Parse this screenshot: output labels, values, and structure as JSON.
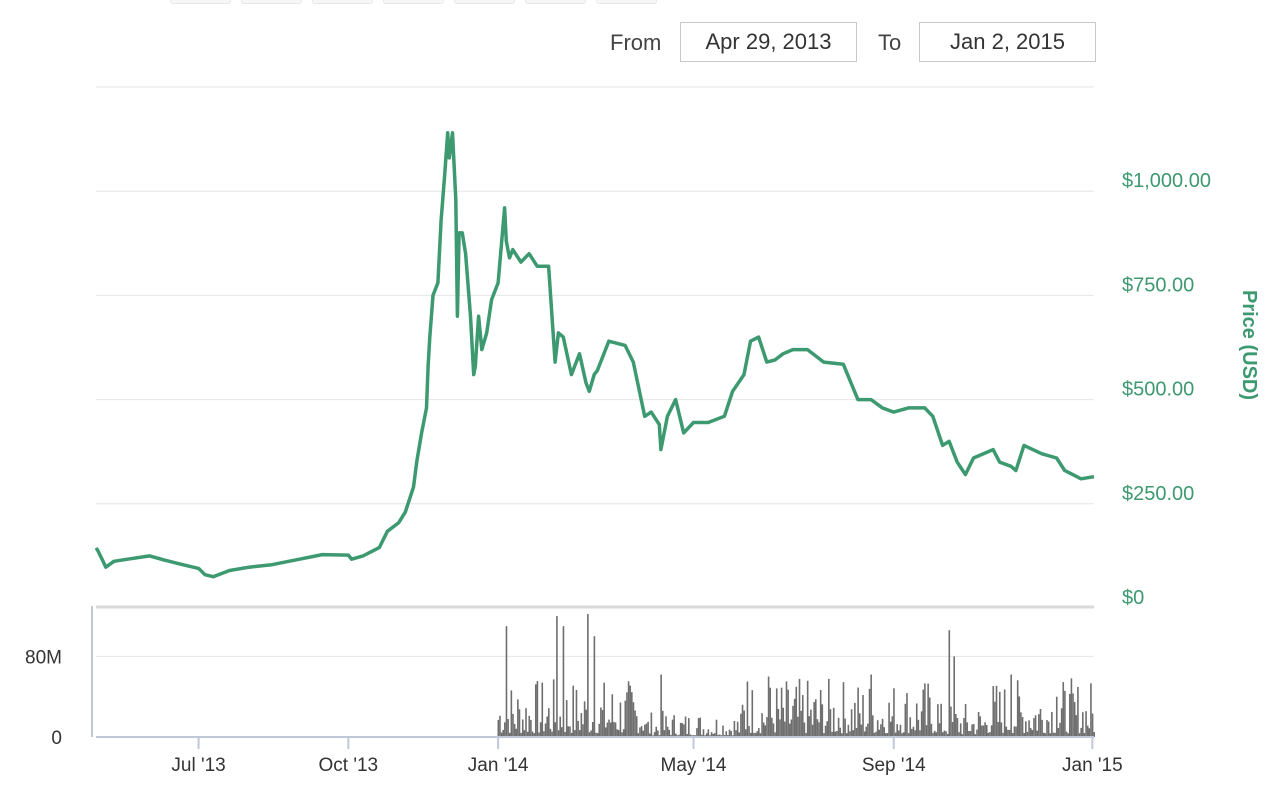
{
  "date_range": {
    "from_label": "From",
    "from_value": "Apr 29, 2013",
    "to_label": "To",
    "to_value": "Jan 2, 2015"
  },
  "colors": {
    "price_line": "#3d9970",
    "volume_bars": "#6e6e6e",
    "gridline": "#e6e6e6",
    "price_axis_text": "#3d9970"
  },
  "chart_data": [
    {
      "type": "line",
      "title": "",
      "x_range": [
        "2013-04-29",
        "2015-01-02"
      ],
      "ylabel": "Price (USD)",
      "ylim": [
        0,
        1250
      ],
      "y_ticks": [
        {
          "value": 0,
          "label": "$0"
        },
        {
          "value": 250,
          "label": "$250.00"
        },
        {
          "value": 500,
          "label": "$500.00"
        },
        {
          "value": 750,
          "label": "$750.00"
        },
        {
          "value": 1000,
          "label": "$1,000.00"
        }
      ],
      "x_ticks": [
        {
          "date": "2013-07-01",
          "label": "Jul '13"
        },
        {
          "date": "2013-10-01",
          "label": "Oct '13"
        },
        {
          "date": "2014-01-01",
          "label": "Jan '14"
        },
        {
          "date": "2014-05-01",
          "label": "May '14"
        },
        {
          "date": "2014-09-01",
          "label": "Sep '14"
        },
        {
          "date": "2015-01-01",
          "label": "Jan '15"
        }
      ],
      "grid": true,
      "series": [
        {
          "x": [
            "2013-04-29",
            "2013-04-30",
            "2013-05-03",
            "2013-05-05",
            "2013-05-10",
            "2013-05-20",
            "2013-06-01",
            "2013-06-10",
            "2013-06-20",
            "2013-07-01",
            "2013-07-05",
            "2013-07-10",
            "2013-07-20",
            "2013-08-01",
            "2013-08-15",
            "2013-09-01",
            "2013-09-15",
            "2013-10-01",
            "2013-10-03",
            "2013-10-10",
            "2013-10-20",
            "2013-10-25",
            "2013-11-01",
            "2013-11-05",
            "2013-11-10",
            "2013-11-12",
            "2013-11-15",
            "2013-11-18",
            "2013-11-19",
            "2013-11-20",
            "2013-11-22",
            "2013-11-25",
            "2013-11-27",
            "2013-11-29",
            "2013-12-01",
            "2013-12-02",
            "2013-12-04",
            "2013-12-06",
            "2013-12-07",
            "2013-12-08",
            "2013-12-10",
            "2013-12-12",
            "2013-12-15",
            "2013-12-17",
            "2013-12-18",
            "2013-12-20",
            "2013-12-22",
            "2013-12-25",
            "2013-12-28",
            "2014-01-01",
            "2014-01-05",
            "2014-01-06",
            "2014-01-08",
            "2014-01-10",
            "2014-01-15",
            "2014-01-20",
            "2014-01-25",
            "2014-02-01",
            "2014-02-05",
            "2014-02-07",
            "2014-02-10",
            "2014-02-15",
            "2014-02-20",
            "2014-02-24",
            "2014-02-26",
            "2014-03-01",
            "2014-03-03",
            "2014-03-10",
            "2014-03-20",
            "2014-03-25",
            "2014-04-01",
            "2014-04-05",
            "2014-04-10",
            "2014-04-11",
            "2014-04-15",
            "2014-04-20",
            "2014-04-25",
            "2014-05-01",
            "2014-05-10",
            "2014-05-20",
            "2014-05-25",
            "2014-06-01",
            "2014-06-05",
            "2014-06-10",
            "2014-06-15",
            "2014-06-20",
            "2014-06-25",
            "2014-07-01",
            "2014-07-10",
            "2014-07-20",
            "2014-08-01",
            "2014-08-10",
            "2014-08-18",
            "2014-08-25",
            "2014-09-01",
            "2014-09-10",
            "2014-09-20",
            "2014-09-25",
            "2014-10-01",
            "2014-10-05",
            "2014-10-10",
            "2014-10-15",
            "2014-10-20",
            "2014-11-01",
            "2014-11-05",
            "2014-11-12",
            "2014-11-15",
            "2014-11-20",
            "2014-12-01",
            "2014-12-10",
            "2014-12-15",
            "2014-12-20",
            "2014-12-25",
            "2015-01-02"
          ],
          "y": [
            144,
            139,
            115,
            98,
            112,
            118,
            125,
            115,
            105,
            95,
            80,
            75,
            90,
            98,
            104,
            117,
            128,
            127,
            117,
            125,
            145,
            184,
            205,
            230,
            290,
            350,
            420,
            480,
            580,
            650,
            750,
            780,
            930,
            1030,
            1140,
            1080,
            1140,
            980,
            700,
            900,
            900,
            850,
            700,
            560,
            580,
            700,
            620,
            660,
            740,
            780,
            960,
            880,
            840,
            860,
            830,
            850,
            820,
            820,
            590,
            660,
            650,
            560,
            610,
            540,
            520,
            560,
            570,
            640,
            630,
            590,
            460,
            470,
            440,
            380,
            460,
            500,
            420,
            445,
            445,
            460,
            520,
            560,
            640,
            650,
            590,
            595,
            610,
            620,
            620,
            590,
            585,
            500,
            500,
            480,
            470,
            480,
            480,
            460,
            390,
            400,
            350,
            320,
            360,
            380,
            350,
            340,
            330,
            390,
            370,
            360,
            330,
            320,
            310,
            315
          ]
        }
      ]
    },
    {
      "type": "bar",
      "title": "",
      "ylabel": "",
      "ylim": [
        0,
        130
      ],
      "y_ticks": [
        {
          "value": 0,
          "label": "0"
        },
        {
          "value": 80,
          "label": "80M"
        }
      ],
      "series": [
        {
          "x_range": [
            "2014-01-01",
            "2015-01-02"
          ],
          "spikes": [
            {
              "x": "2014-01-06",
              "value": 110
            },
            {
              "x": "2014-02-06",
              "value": 120
            },
            {
              "x": "2014-02-10",
              "value": 110
            },
            {
              "x": "2014-02-25",
              "value": 122
            },
            {
              "x": "2014-03-01",
              "value": 100
            },
            {
              "x": "2014-04-11",
              "value": 62
            },
            {
              "x": "2014-06-03",
              "value": 55
            },
            {
              "x": "2014-06-16",
              "value": 60
            },
            {
              "x": "2014-08-18",
              "value": 62
            },
            {
              "x": "2014-10-05",
              "value": 106
            },
            {
              "x": "2014-10-08",
              "value": 80
            },
            {
              "x": "2014-11-12",
              "value": 62
            },
            {
              "x": "2014-12-10",
              "value": 40
            }
          ],
          "baseline_volume": 25
        }
      ]
    }
  ]
}
